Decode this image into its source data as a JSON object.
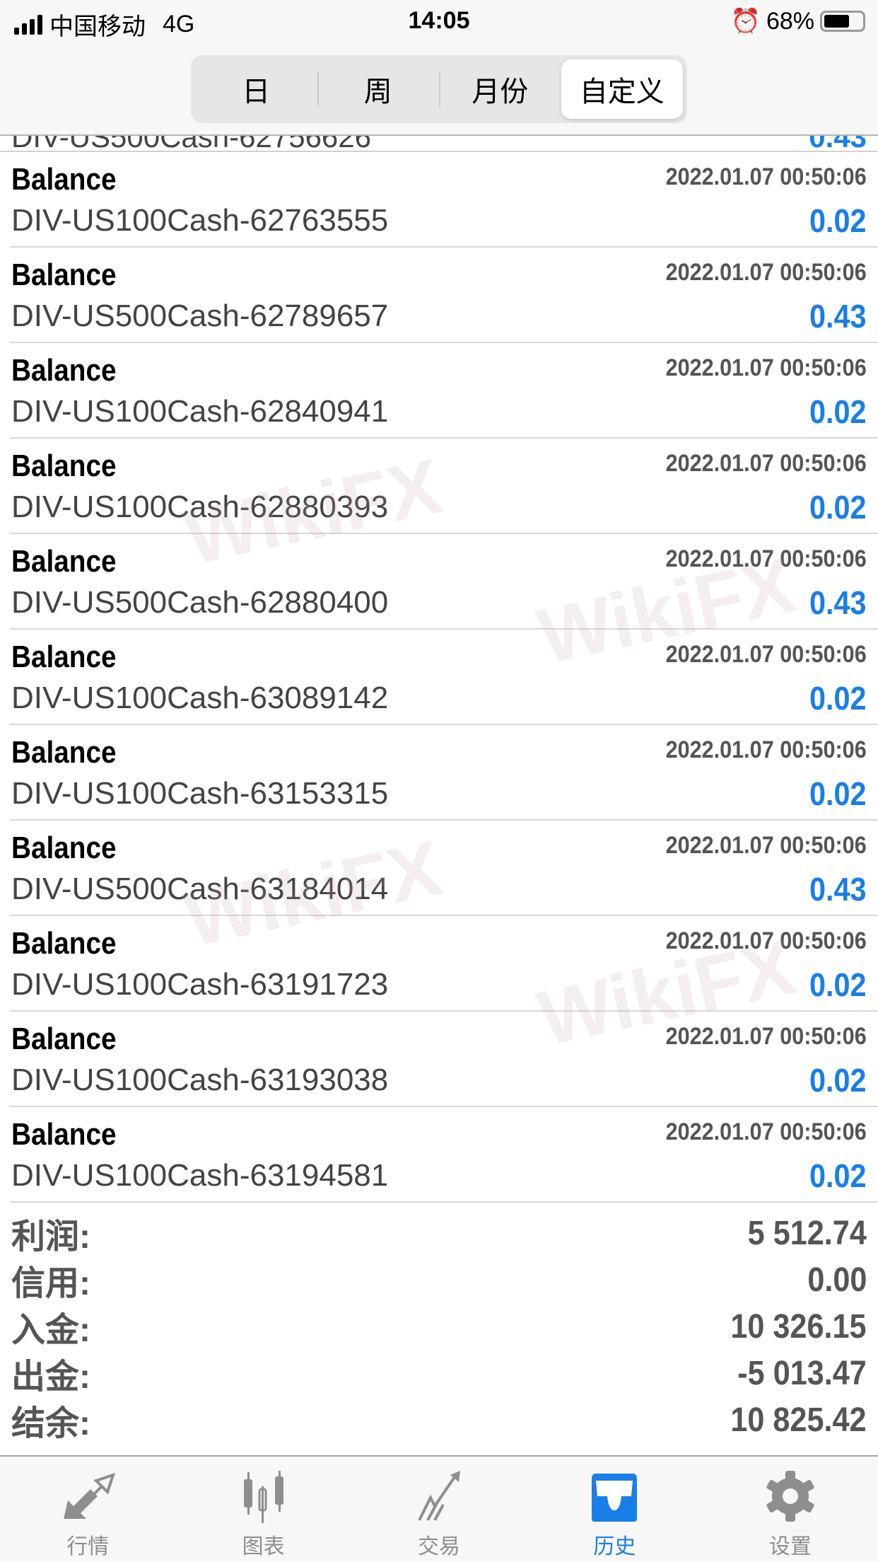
{
  "status_bar": {
    "carrier": "中国移动",
    "network": "4G",
    "time": "14:05",
    "battery": "68%",
    "battery_level": 0.68
  },
  "segments": [
    {
      "label": "日"
    },
    {
      "label": "周"
    },
    {
      "label": "月份"
    },
    {
      "label": "自定义",
      "active": true
    }
  ],
  "partial_row": {
    "symbol": "DIV-US500Cash-62756626",
    "value": "0.43"
  },
  "rows": [
    {
      "type": "Balance",
      "time": "2022.01.07 00:50:06",
      "symbol": "DIV-US100Cash-62763555",
      "value": "0.02"
    },
    {
      "type": "Balance",
      "time": "2022.01.07 00:50:06",
      "symbol": "DIV-US500Cash-62789657",
      "value": "0.43"
    },
    {
      "type": "Balance",
      "time": "2022.01.07 00:50:06",
      "symbol": "DIV-US100Cash-62840941",
      "value": "0.02"
    },
    {
      "type": "Balance",
      "time": "2022.01.07 00:50:06",
      "symbol": "DIV-US100Cash-62880393",
      "value": "0.02"
    },
    {
      "type": "Balance",
      "time": "2022.01.07 00:50:06",
      "symbol": "DIV-US500Cash-62880400",
      "value": "0.43"
    },
    {
      "type": "Balance",
      "time": "2022.01.07 00:50:06",
      "symbol": "DIV-US100Cash-63089142",
      "value": "0.02"
    },
    {
      "type": "Balance",
      "time": "2022.01.07 00:50:06",
      "symbol": "DIV-US100Cash-63153315",
      "value": "0.02"
    },
    {
      "type": "Balance",
      "time": "2022.01.07 00:50:06",
      "symbol": "DIV-US500Cash-63184014",
      "value": "0.43"
    },
    {
      "type": "Balance",
      "time": "2022.01.07 00:50:06",
      "symbol": "DIV-US100Cash-63191723",
      "value": "0.02"
    },
    {
      "type": "Balance",
      "time": "2022.01.07 00:50:06",
      "symbol": "DIV-US100Cash-63193038",
      "value": "0.02"
    },
    {
      "type": "Balance",
      "time": "2022.01.07 00:50:06",
      "symbol": "DIV-US100Cash-63194581",
      "value": "0.02"
    }
  ],
  "summary": [
    {
      "label": "利润:",
      "value": "5 512.74"
    },
    {
      "label": "信用:",
      "value": "0.00"
    },
    {
      "label": "入金:",
      "value": "10 326.15"
    },
    {
      "label": "出金:",
      "value": "-5 013.47"
    },
    {
      "label": "结余:",
      "value": "10 825.42"
    }
  ],
  "tabs": [
    {
      "label": "行情",
      "icon": "quotes-arrows-icon"
    },
    {
      "label": "图表",
      "icon": "candlestick-chart-icon"
    },
    {
      "label": "交易",
      "icon": "trade-trend-icon"
    },
    {
      "label": "历史",
      "icon": "history-inbox-icon",
      "active": true
    },
    {
      "label": "设置",
      "icon": "gear-icon"
    }
  ],
  "watermark": "WikiFX",
  "colors": {
    "accent": "#1a7ee8",
    "inactive": "#8e8e8e"
  }
}
